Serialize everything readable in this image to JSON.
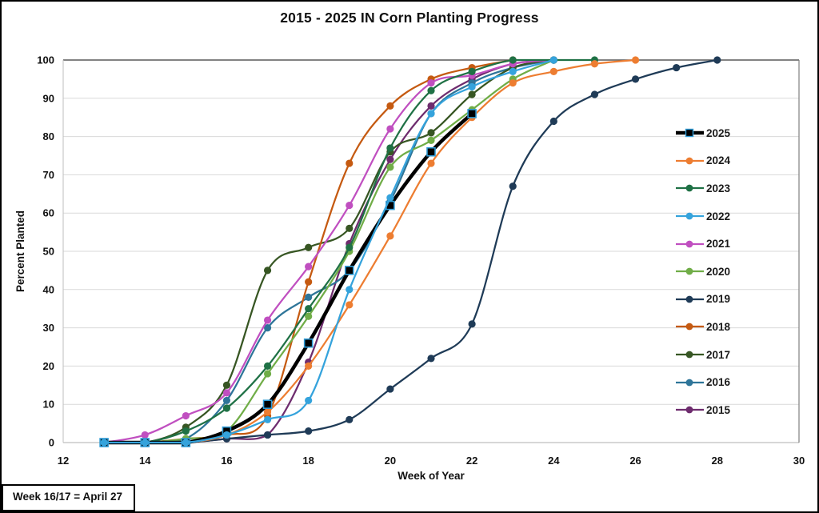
{
  "chart_data": {
    "type": "line",
    "title": "2015 - 2025 IN Corn Planting Progress",
    "xlabel": "Week of Year",
    "ylabel": "Percent Planted",
    "annotation": "Week 16/17 = April 27",
    "xlim": [
      12,
      30
    ],
    "ylim": [
      0,
      100
    ],
    "x_ticks": [
      12,
      14,
      16,
      18,
      20,
      22,
      24,
      26,
      28,
      30
    ],
    "y_ticks": [
      0,
      10,
      20,
      30,
      40,
      50,
      60,
      70,
      80,
      90,
      100
    ],
    "grid": "horizontal",
    "legend_position": "right-inside",
    "series": [
      {
        "name": "2025",
        "color": "#000000",
        "marker": "square",
        "marker_border": "#2E9BD6",
        "line_width": 4.5,
        "points": [
          [
            13,
            0
          ],
          [
            14,
            0
          ],
          [
            15,
            0
          ],
          [
            16,
            3
          ],
          [
            17,
            10
          ],
          [
            18,
            26
          ],
          [
            19,
            45
          ],
          [
            20,
            62
          ],
          [
            21,
            76
          ],
          [
            22,
            86
          ]
        ]
      },
      {
        "name": "2024",
        "color": "#ED7D31",
        "marker": "circle",
        "line_width": 2.25,
        "points": [
          [
            13,
            0
          ],
          [
            14,
            0
          ],
          [
            15,
            0
          ],
          [
            16,
            2
          ],
          [
            17,
            8
          ],
          [
            18,
            20
          ],
          [
            19,
            36
          ],
          [
            20,
            54
          ],
          [
            21,
            73
          ],
          [
            22,
            85
          ],
          [
            23,
            94
          ],
          [
            24,
            97
          ],
          [
            25,
            99
          ],
          [
            26,
            100
          ]
        ]
      },
      {
        "name": "2023",
        "color": "#1F7145",
        "marker": "circle",
        "line_width": 2.25,
        "points": [
          [
            13,
            0
          ],
          [
            14,
            0
          ],
          [
            15,
            3
          ],
          [
            16,
            9
          ],
          [
            17,
            20
          ],
          [
            18,
            35
          ],
          [
            19,
            51
          ],
          [
            20,
            77
          ],
          [
            21,
            92
          ],
          [
            22,
            97
          ],
          [
            23,
            100
          ],
          [
            24,
            100
          ],
          [
            25,
            100
          ]
        ]
      },
      {
        "name": "2022",
        "color": "#35A3DC",
        "marker": "circle",
        "line_width": 2.25,
        "points": [
          [
            13,
            0
          ],
          [
            14,
            0
          ],
          [
            15,
            0
          ],
          [
            16,
            2
          ],
          [
            17,
            6
          ],
          [
            18,
            11
          ],
          [
            19,
            40
          ],
          [
            20,
            64
          ],
          [
            21,
            86
          ],
          [
            22,
            93
          ],
          [
            23,
            97
          ],
          [
            24,
            100
          ]
        ]
      },
      {
        "name": "2021",
        "color": "#C04FC0",
        "marker": "circle",
        "line_width": 2.25,
        "points": [
          [
            13,
            0
          ],
          [
            14,
            2
          ],
          [
            15,
            7
          ],
          [
            16,
            13
          ],
          [
            17,
            32
          ],
          [
            18,
            46
          ],
          [
            19,
            62
          ],
          [
            20,
            82
          ],
          [
            21,
            94
          ],
          [
            22,
            96
          ],
          [
            23,
            99
          ],
          [
            24,
            100
          ]
        ]
      },
      {
        "name": "2020",
        "color": "#70AD47",
        "marker": "circle",
        "line_width": 2.25,
        "points": [
          [
            13,
            0
          ],
          [
            14,
            0
          ],
          [
            15,
            1
          ],
          [
            16,
            3
          ],
          [
            17,
            18
          ],
          [
            18,
            33
          ],
          [
            19,
            50
          ],
          [
            20,
            72
          ],
          [
            21,
            79
          ],
          [
            22,
            87
          ],
          [
            23,
            95
          ],
          [
            24,
            100
          ]
        ]
      },
      {
        "name": "2019",
        "color": "#1F3B57",
        "marker": "circle",
        "line_width": 2.25,
        "points": [
          [
            13,
            0
          ],
          [
            14,
            0
          ],
          [
            15,
            0
          ],
          [
            16,
            1
          ],
          [
            17,
            2
          ],
          [
            18,
            3
          ],
          [
            19,
            6
          ],
          [
            20,
            14
          ],
          [
            21,
            22
          ],
          [
            22,
            31
          ],
          [
            23,
            67
          ],
          [
            24,
            84
          ],
          [
            25,
            91
          ],
          [
            26,
            95
          ],
          [
            27,
            98
          ],
          [
            28,
            100
          ]
        ]
      },
      {
        "name": "2018",
        "color": "#C55A11",
        "marker": "circle",
        "line_width": 2.25,
        "points": [
          [
            13,
            0
          ],
          [
            14,
            0
          ],
          [
            15,
            1
          ],
          [
            16,
            2
          ],
          [
            17,
            7
          ],
          [
            18,
            42
          ],
          [
            19,
            73
          ],
          [
            20,
            88
          ],
          [
            21,
            95
          ],
          [
            22,
            98
          ],
          [
            23,
            100
          ]
        ]
      },
      {
        "name": "2017",
        "color": "#375623",
        "marker": "circle",
        "line_width": 2.25,
        "points": [
          [
            13,
            0
          ],
          [
            14,
            0
          ],
          [
            15,
            4
          ],
          [
            16,
            15
          ],
          [
            17,
            45
          ],
          [
            18,
            51
          ],
          [
            19,
            56
          ],
          [
            20,
            76
          ],
          [
            21,
            81
          ],
          [
            22,
            91
          ],
          [
            23,
            98
          ],
          [
            24,
            100
          ]
        ]
      },
      {
        "name": "2016",
        "color": "#2E7599",
        "marker": "circle",
        "line_width": 2.25,
        "points": [
          [
            13,
            0
          ],
          [
            14,
            0
          ],
          [
            15,
            1
          ],
          [
            16,
            11
          ],
          [
            17,
            30
          ],
          [
            18,
            38
          ],
          [
            19,
            45
          ],
          [
            20,
            63
          ],
          [
            21,
            86
          ],
          [
            22,
            94
          ],
          [
            23,
            98
          ],
          [
            24,
            100
          ]
        ]
      },
      {
        "name": "2015",
        "color": "#6E2C6E",
        "marker": "circle",
        "line_width": 2.25,
        "points": [
          [
            13,
            0
          ],
          [
            14,
            0
          ],
          [
            15,
            0
          ],
          [
            16,
            1
          ],
          [
            17,
            2
          ],
          [
            18,
            21
          ],
          [
            19,
            52
          ],
          [
            20,
            74
          ],
          [
            21,
            88
          ],
          [
            22,
            95
          ],
          [
            23,
            99
          ],
          [
            24,
            100
          ]
        ]
      }
    ]
  }
}
